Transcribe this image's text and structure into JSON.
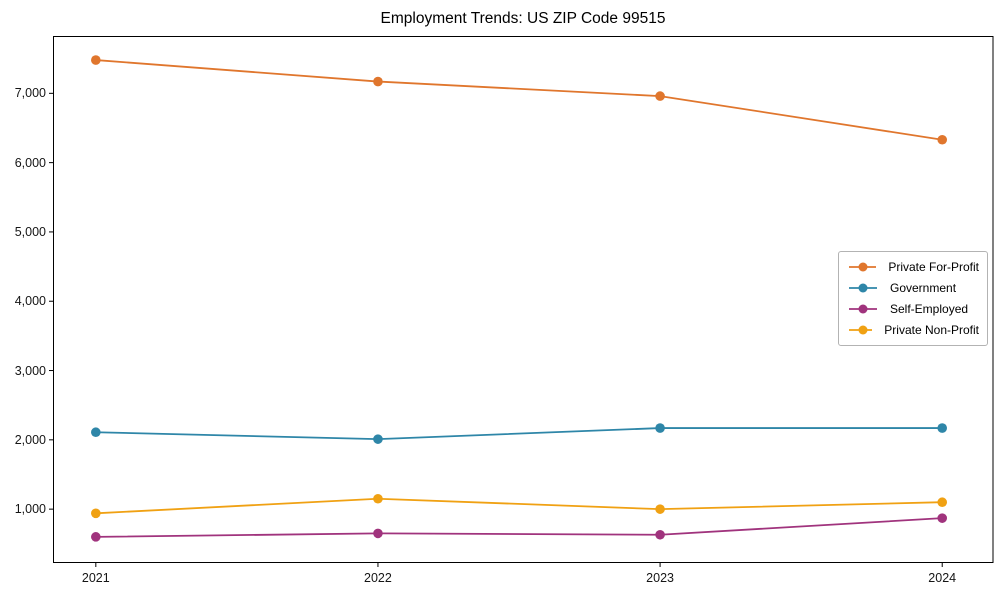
{
  "figure": {
    "title": "Employment Trends: US ZIP Code 99515"
  },
  "chart_data": {
    "type": "line",
    "title": "Employment Trends: US ZIP Code 99515",
    "xlabel": "",
    "ylabel": "",
    "categories": [
      2021,
      2022,
      2023,
      2024
    ],
    "x_tick_labels": [
      "2021",
      "2022",
      "2023",
      "2024"
    ],
    "y_ticks": [
      {
        "value": 1000,
        "label": "1,000"
      },
      {
        "value": 2000,
        "label": "2,000"
      },
      {
        "value": 3000,
        "label": "3,000"
      },
      {
        "value": 4000,
        "label": "4,000"
      },
      {
        "value": 5000,
        "label": "5,000"
      },
      {
        "value": 6000,
        "label": "6,000"
      },
      {
        "value": 7000,
        "label": "7,000"
      }
    ],
    "xlim": [
      2020.85,
      2024.18
    ],
    "ylim": [
      230,
      7820
    ],
    "grid": false,
    "legend_position": "center right",
    "axes_border_color": "#000000",
    "series": [
      {
        "name": "Private For-Profit",
        "color": "#E0762D",
        "marker": "circle",
        "values": [
          7480,
          7170,
          6960,
          6330
        ]
      },
      {
        "name": "Government",
        "color": "#2E86A8",
        "marker": "circle",
        "values": [
          2110,
          2010,
          2170,
          2170
        ]
      },
      {
        "name": "Self-Employed",
        "color": "#A0337D",
        "marker": "circle",
        "values": [
          600,
          650,
          630,
          870
        ]
      },
      {
        "name": "Private Non-Profit",
        "color": "#F0A113",
        "marker": "circle",
        "values": [
          940,
          1150,
          1000,
          1100
        ]
      }
    ]
  }
}
